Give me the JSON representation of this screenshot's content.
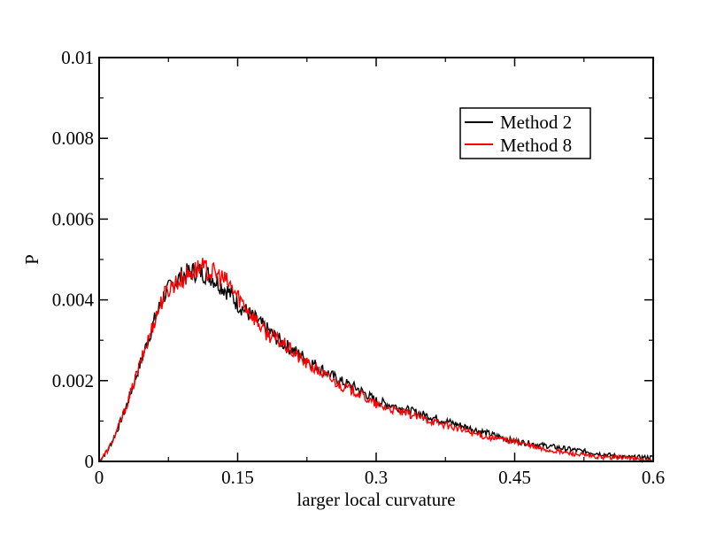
{
  "chart_data": {
    "type": "line",
    "title": "",
    "xlabel": "larger local curvature",
    "ylabel": "P",
    "xlim": [
      0,
      0.6
    ],
    "ylim": [
      0,
      0.01
    ],
    "x_ticks": [
      0,
      0.15,
      0.3,
      0.45,
      0.6
    ],
    "x_tick_labels": [
      "0",
      "0.15",
      "0.3",
      "0.45",
      "0.6"
    ],
    "y_ticks": [
      0,
      0.002,
      0.004,
      0.006,
      0.008,
      0.01
    ],
    "y_tick_labels": [
      "0",
      "0.002",
      "0.004",
      "0.006",
      "0.008",
      "0.01"
    ],
    "grid": false,
    "legend_position": "top-right",
    "series": [
      {
        "name": "Method 2",
        "color": "#000000",
        "x": [
          0,
          0.01,
          0.02,
          0.03,
          0.04,
          0.05,
          0.06,
          0.07,
          0.08,
          0.09,
          0.1,
          0.11,
          0.12,
          0.13,
          0.14,
          0.15,
          0.16,
          0.17,
          0.18,
          0.2,
          0.22,
          0.24,
          0.26,
          0.28,
          0.3,
          0.33,
          0.36,
          0.39,
          0.42,
          0.45,
          0.48,
          0.51,
          0.54,
          0.57,
          0.6
        ],
        "y": [
          0,
          0.0003,
          0.0008,
          0.0014,
          0.0021,
          0.0028,
          0.0035,
          0.0041,
          0.0044,
          0.0046,
          0.0047,
          0.0047,
          0.0046,
          0.0044,
          0.0042,
          0.0039,
          0.0037,
          0.0035,
          0.0033,
          0.0029,
          0.0026,
          0.0023,
          0.002,
          0.0018,
          0.0015,
          0.0013,
          0.0011,
          0.0009,
          0.0007,
          0.0005,
          0.0004,
          0.0003,
          0.0002,
          0.0001,
          0.0001
        ]
      },
      {
        "name": "Method 8",
        "color": "#ff0000",
        "x": [
          0,
          0.01,
          0.02,
          0.03,
          0.04,
          0.05,
          0.06,
          0.07,
          0.08,
          0.09,
          0.1,
          0.11,
          0.12,
          0.13,
          0.14,
          0.15,
          0.16,
          0.17,
          0.18,
          0.2,
          0.22,
          0.24,
          0.26,
          0.28,
          0.3,
          0.33,
          0.36,
          0.39,
          0.42,
          0.45,
          0.48,
          0.51,
          0.54,
          0.57,
          0.6
        ],
        "y": [
          0,
          0.0003,
          0.0008,
          0.0014,
          0.0021,
          0.0028,
          0.0035,
          0.0041,
          0.0044,
          0.0045,
          0.0047,
          0.0048,
          0.0047,
          0.0046,
          0.0044,
          0.0041,
          0.0038,
          0.0035,
          0.0032,
          0.0029,
          0.0025,
          0.0022,
          0.0019,
          0.0017,
          0.0014,
          0.0012,
          0.001,
          0.0008,
          0.0006,
          0.0005,
          0.0003,
          0.0002,
          0.0001,
          0.0001,
          0
        ]
      }
    ]
  }
}
